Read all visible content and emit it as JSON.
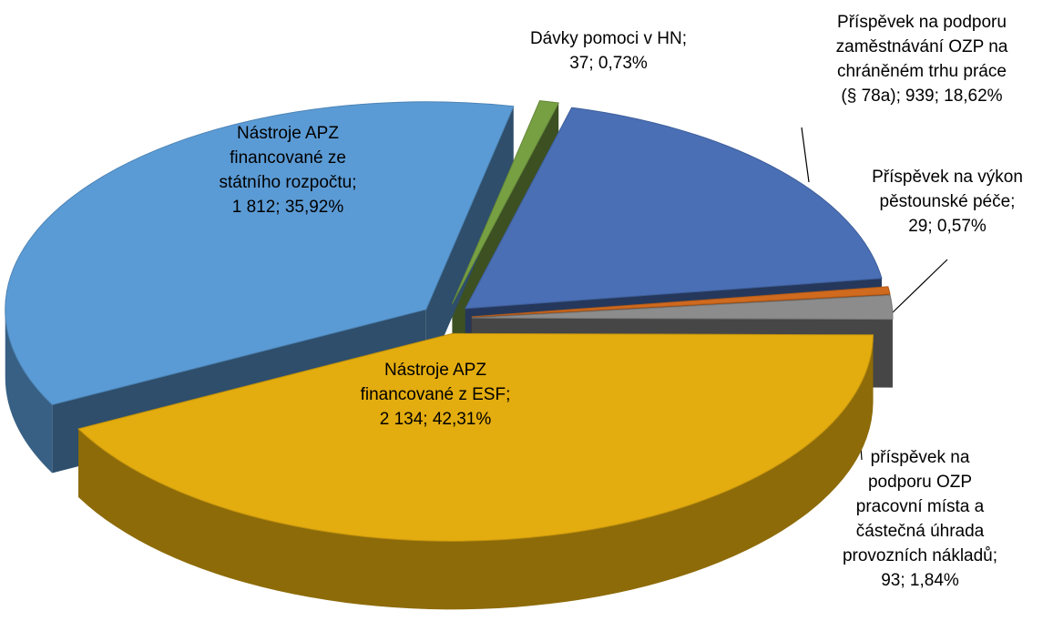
{
  "chart_data": {
    "type": "pie",
    "categories": [
      "Dávky pomoci v HN",
      "Příspěvek na podporu zaměstnávání OZP na chráněném trhu práce (§ 78a)",
      "Příspěvek na výkon pěstounské péče",
      "příspěvek na podporu OZP pracovní místa a částečná úhrada provozních nákladů",
      "Nástroje APZ financované z ESF",
      "Nástroje APZ financované ze státního rozpočtu"
    ],
    "values": [
      37,
      939,
      29,
      93,
      2134,
      1812
    ],
    "value_labels": [
      "37",
      "939",
      "29",
      "93",
      "2 134",
      "1 812"
    ],
    "percents": [
      0.73,
      18.62,
      0.57,
      1.84,
      42.31,
      35.92
    ],
    "percent_labels": [
      "0,73%",
      "18,62%",
      "0,57%",
      "1,84%",
      "42,31%",
      "35,92%"
    ],
    "colors": [
      "#77a043",
      "#4a6fb5",
      "#d06a1e",
      "#8c8c8c",
      "#e3ac0f",
      "#5b9bd5"
    ]
  }
}
